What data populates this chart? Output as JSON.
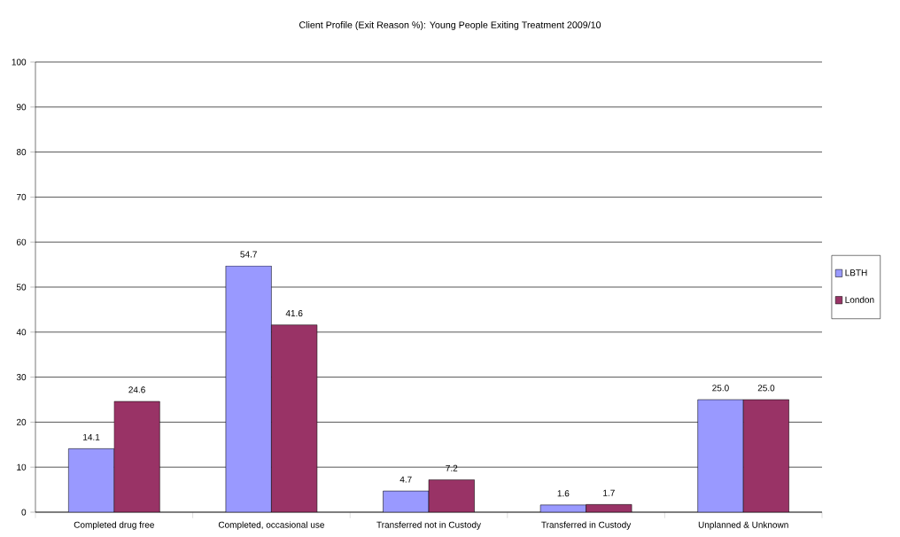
{
  "chart_data": {
    "type": "bar",
    "title": "Client Profile (Exit Reason %): Young People Exiting Treatment 2009/10",
    "categories": [
      "Completed drug free",
      "Completed, occasional use",
      "Transferred not in Custody",
      "Transferred in Custody",
      "Unplanned & Unknown"
    ],
    "series": [
      {
        "name": "LBTH",
        "color": "#9999ff",
        "values": [
          14.1,
          54.7,
          4.7,
          1.6,
          25.0
        ],
        "value_labels": [
          "14.1",
          "54.7",
          "4.7",
          "1.6",
          "25.0"
        ]
      },
      {
        "name": "London",
        "color": "#993366",
        "values": [
          24.6,
          41.6,
          7.2,
          1.7,
          25.0
        ],
        "value_labels": [
          "24.6",
          "41.6",
          "7.2",
          "1.7",
          "25.0"
        ]
      }
    ],
    "ylim": [
      0,
      100
    ],
    "yticks": [
      0,
      10,
      20,
      30,
      40,
      50,
      60,
      70,
      80,
      90,
      100
    ],
    "grid": "y",
    "legend": "right"
  }
}
